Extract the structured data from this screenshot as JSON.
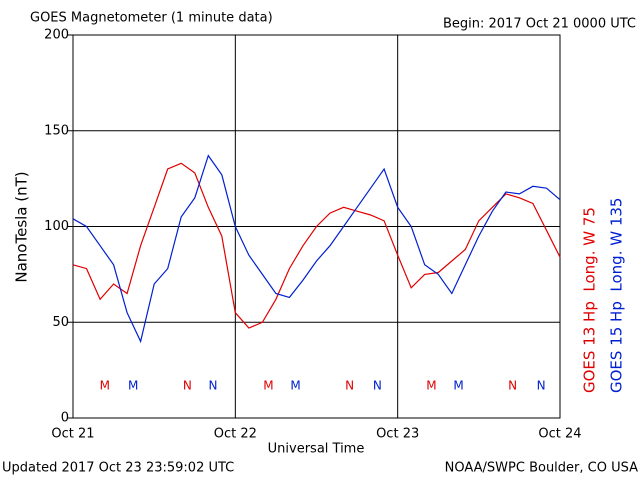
{
  "chart_data": {
    "type": "line",
    "title": "GOES Magnetometer (1 minute data)",
    "subtitle": "Begin:  2017 Oct 21 0000 UTC",
    "ylabel": "NanoTesla (nT)",
    "xlabel": "Universal Time",
    "footer_left": "Updated 2017 Oct 23 23:59:02 UTC",
    "footer_right": "NOAA/SWPC Boulder, CO USA",
    "x": [
      0,
      2,
      4,
      6,
      8,
      10,
      12,
      14,
      16,
      18,
      20,
      22,
      24,
      26,
      28,
      30,
      32,
      34,
      36,
      38,
      40,
      42,
      44,
      46,
      48,
      50,
      52,
      54,
      56,
      58,
      60,
      62,
      64,
      66,
      68,
      70,
      72
    ],
    "xlim": [
      0,
      72
    ],
    "xticks": [
      {
        "value": 0,
        "label": "Oct 21"
      },
      {
        "value": 24,
        "label": "Oct 22"
      },
      {
        "value": 48,
        "label": "Oct 23"
      },
      {
        "value": 72,
        "label": "Oct 24"
      }
    ],
    "ylim": [
      0,
      200
    ],
    "yticks": [
      0,
      50,
      100,
      150,
      200
    ],
    "grid": true,
    "series": [
      {
        "name": "GOES 13 Hp  Long. W 75",
        "color": "#e00000",
        "values": [
          80,
          78,
          62,
          70,
          65,
          90,
          110,
          130,
          133,
          128,
          110,
          95,
          55,
          47,
          50,
          62,
          78,
          90,
          100,
          107,
          110,
          108,
          106,
          103,
          85,
          68,
          75,
          76,
          82,
          88,
          103,
          110,
          117,
          115,
          112,
          98,
          84
        ]
      },
      {
        "name": "GOES 15 Hp  Long. W 135",
        "color": "#0020d0",
        "values": [
          104,
          100,
          90,
          80,
          55,
          40,
          70,
          78,
          105,
          115,
          137,
          127,
          100,
          85,
          75,
          65,
          63,
          72,
          82,
          90,
          100,
          110,
          120,
          130,
          110,
          100,
          80,
          75,
          65,
          80,
          95,
          108,
          118,
          117,
          121,
          120,
          114
        ]
      }
    ],
    "markers": [
      {
        "text": "M",
        "x": 4.7,
        "series": 0
      },
      {
        "text": "M",
        "x": 8.9,
        "series": 1
      },
      {
        "text": "N",
        "x": 16.9,
        "series": 0
      },
      {
        "text": "N",
        "x": 20.7,
        "series": 1
      },
      {
        "text": "M",
        "x": 28.9,
        "series": 0
      },
      {
        "text": "M",
        "x": 32.9,
        "series": 1
      },
      {
        "text": "N",
        "x": 40.9,
        "series": 0
      },
      {
        "text": "N",
        "x": 45,
        "series": 1
      },
      {
        "text": "M",
        "x": 53,
        "series": 0
      },
      {
        "text": "M",
        "x": 57,
        "series": 1
      },
      {
        "text": "N",
        "x": 65,
        "series": 0
      },
      {
        "text": "N",
        "x": 69.2,
        "series": 1
      }
    ]
  }
}
